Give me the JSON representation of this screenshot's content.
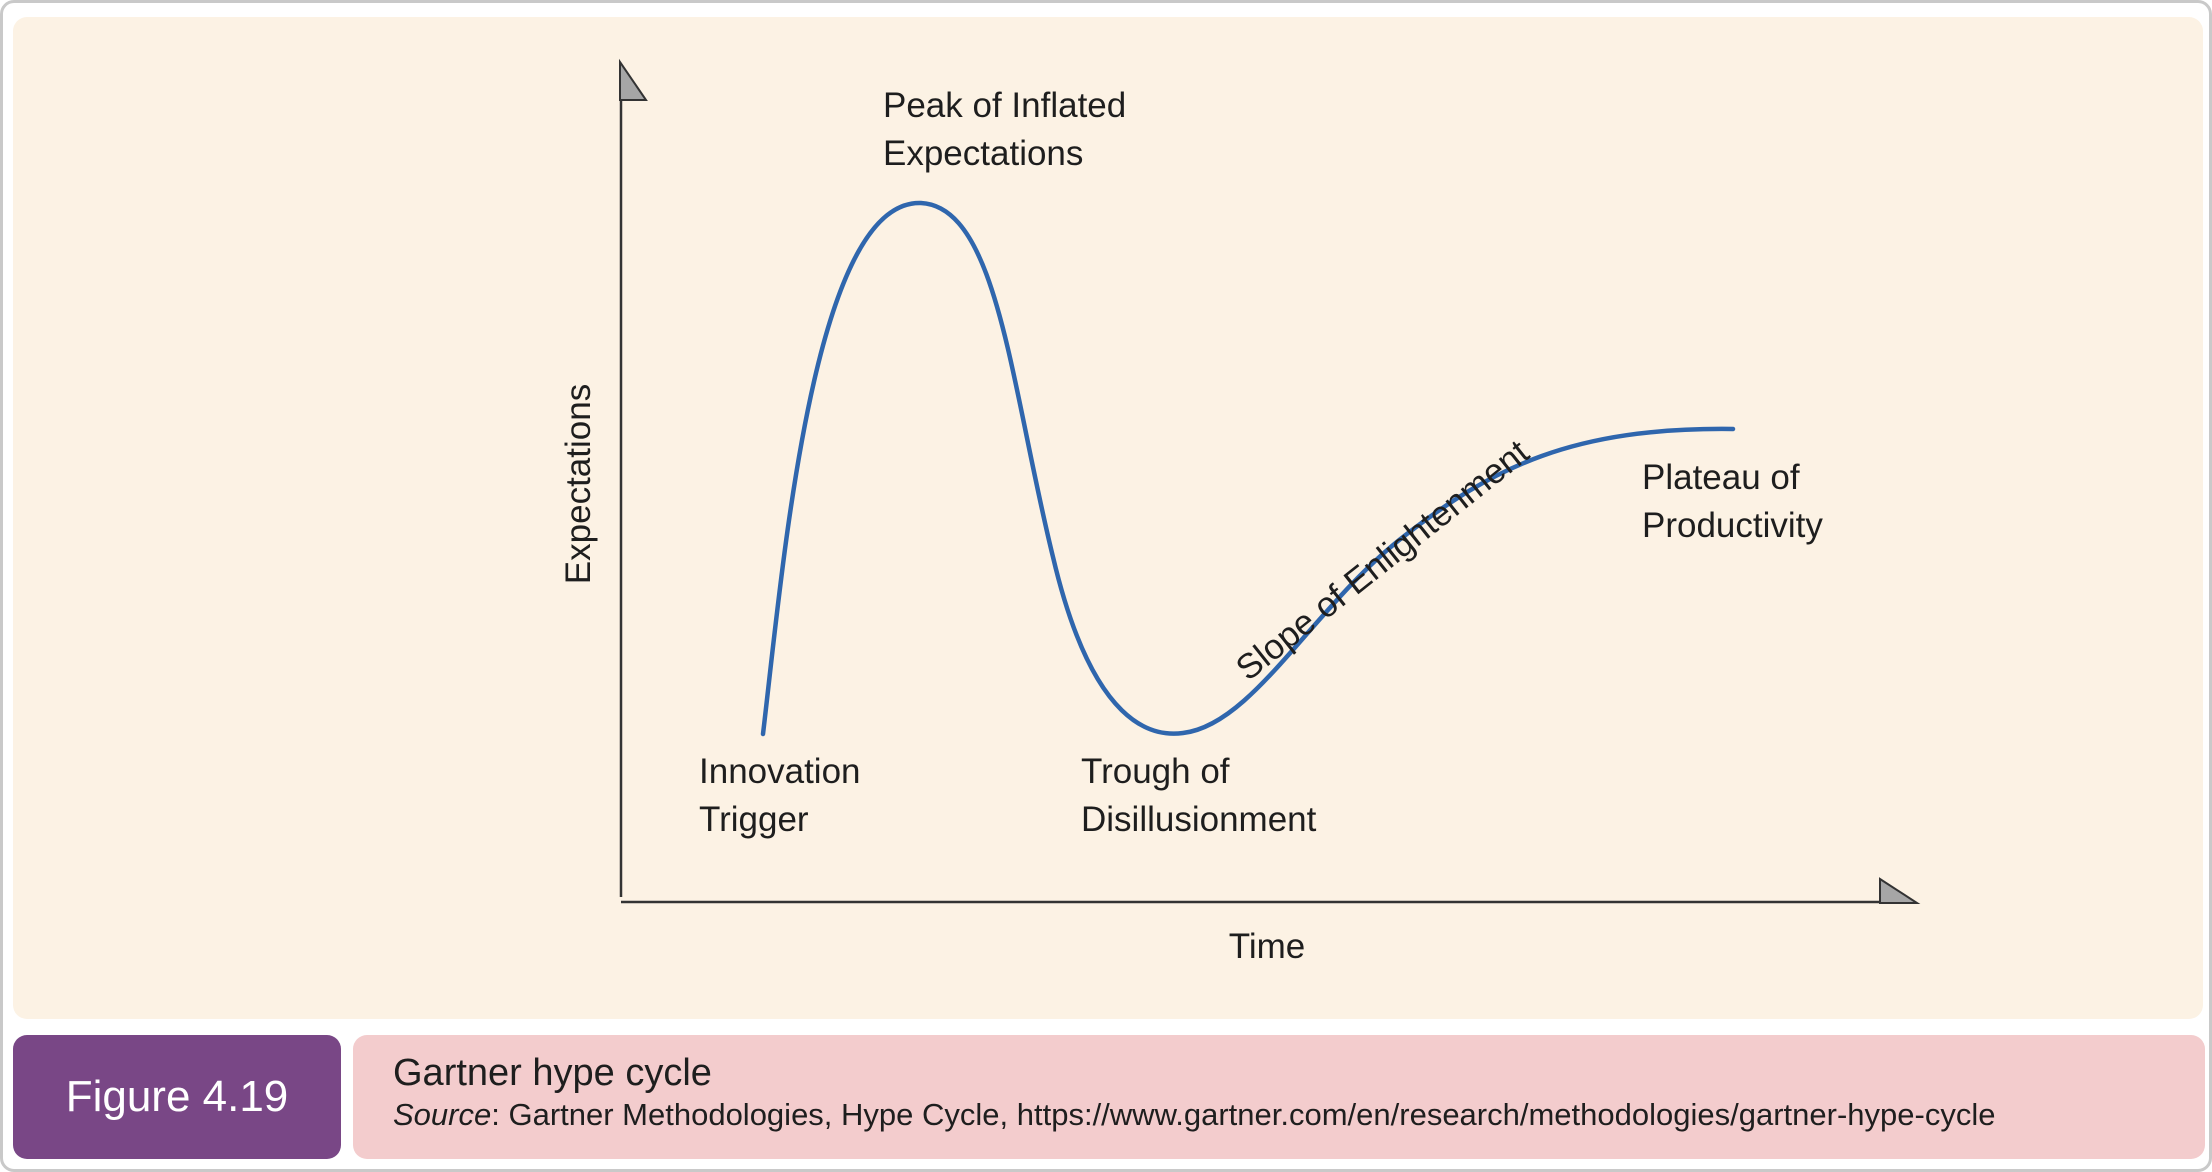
{
  "diagram": {
    "y_axis_label": "Expectations",
    "x_axis_label": "Time",
    "curve_color": "#2f66ad",
    "phases": [
      {
        "id": "innovation-trigger",
        "lines": [
          "Innovation",
          "Trigger"
        ]
      },
      {
        "id": "peak",
        "lines": [
          "Peak of Inflated",
          "Expectations"
        ]
      },
      {
        "id": "trough",
        "lines": [
          "Trough of",
          "Disillusionment"
        ]
      },
      {
        "id": "slope",
        "lines": [
          "Slope of Enlightenment"
        ]
      },
      {
        "id": "plateau",
        "lines": [
          "Plateau of",
          "Productivity"
        ]
      }
    ]
  },
  "caption": {
    "figure_label": "Figure 4.19",
    "title": "Gartner hype cycle",
    "source_label": "Source",
    "source_text": ": Gartner Methodologies, Hype Cycle, https://www.gartner.com/en/research/methodologies/gartner-hype-cycle"
  },
  "colors": {
    "panel_background": "#fcf2e4",
    "figure_badge": "#794786",
    "caption_background": "#f3cccd"
  }
}
